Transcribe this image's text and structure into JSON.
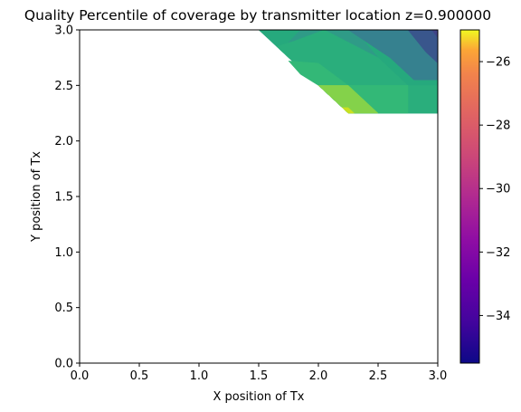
{
  "chart_data": {
    "type": "contourf",
    "title": "Quality Percentile of coverage by transmitter location z=0.900000",
    "xlabel": "X position of Tx",
    "ylabel": "Y position of Tx",
    "xlim": [
      0.0,
      3.0
    ],
    "ylim": [
      0.0,
      3.0
    ],
    "x_ticks": [
      "0.0",
      "0.5",
      "1.0",
      "1.5",
      "2.0",
      "2.5",
      "3.0"
    ],
    "y_ticks": [
      "0.0",
      "0.5",
      "1.0",
      "1.5",
      "2.0",
      "2.5",
      "3.0"
    ],
    "colormap": "plasma",
    "colorbar": {
      "range": [
        -35.5,
        -25.0
      ],
      "ticks": [
        "−26",
        "−28",
        "−30",
        "−32",
        "−34"
      ],
      "tick_values": [
        -26,
        -28,
        -30,
        -32,
        -34
      ]
    },
    "grid": false,
    "regions": [
      {
        "polygon": [
          [
            1.5,
            3.0
          ],
          [
            2.25,
            2.25
          ],
          [
            3.0,
            2.25
          ],
          [
            3.0,
            3.0
          ]
        ],
        "color": "#26a97d"
      },
      {
        "polygon": [
          [
            1.7,
            2.83
          ],
          [
            2.25,
            2.25
          ],
          [
            3.0,
            2.25
          ],
          [
            3.0,
            2.5
          ],
          [
            2.75,
            2.5
          ],
          [
            2.5,
            2.75
          ],
          [
            2.3,
            3.0
          ],
          [
            1.85,
            3.0
          ]
        ],
        "color": "#2f9b87"
      },
      {
        "polygon": [
          [
            2.25,
            3.0
          ],
          [
            2.6,
            2.75
          ],
          [
            2.8,
            2.55
          ],
          [
            3.0,
            2.55
          ],
          [
            3.0,
            3.0
          ]
        ],
        "color": "#36818f"
      },
      {
        "polygon": [
          [
            2.05,
            3.0
          ],
          [
            2.5,
            2.75
          ],
          [
            2.75,
            2.5
          ],
          [
            3.0,
            2.5
          ],
          [
            3.0,
            2.25
          ],
          [
            2.25,
            2.25
          ],
          [
            2.0,
            2.5
          ],
          [
            1.9,
            2.6
          ],
          [
            1.65,
            2.85
          ],
          [
            1.8,
            2.9
          ]
        ],
        "color": "#2aae7c"
      },
      {
        "polygon": [
          [
            1.85,
            2.6
          ],
          [
            2.0,
            2.5
          ],
          [
            2.25,
            2.25
          ],
          [
            2.75,
            2.25
          ],
          [
            2.75,
            2.5
          ],
          [
            2.25,
            2.5
          ],
          [
            2.0,
            2.7
          ],
          [
            1.75,
            2.72
          ]
        ],
        "color": "#33b877"
      },
      {
        "polygon": [
          [
            2.0,
            2.5
          ],
          [
            2.25,
            2.25
          ],
          [
            2.5,
            2.25
          ],
          [
            2.25,
            2.5
          ]
        ],
        "color": "#84d24a"
      },
      {
        "polygon": [
          [
            2.2,
            2.3
          ],
          [
            2.25,
            2.25
          ],
          [
            2.3,
            2.25
          ],
          [
            2.25,
            2.3
          ]
        ],
        "color": "#c9e020"
      },
      {
        "polygon": [
          [
            2.75,
            3.0
          ],
          [
            2.9,
            2.8
          ],
          [
            3.0,
            2.7
          ],
          [
            3.0,
            3.0
          ]
        ],
        "color": "#39568c"
      },
      {
        "polygon": [
          [
            2.95,
            3.0
          ],
          [
            3.0,
            2.93
          ],
          [
            3.0,
            3.0
          ]
        ],
        "color": "#404387"
      }
    ]
  }
}
